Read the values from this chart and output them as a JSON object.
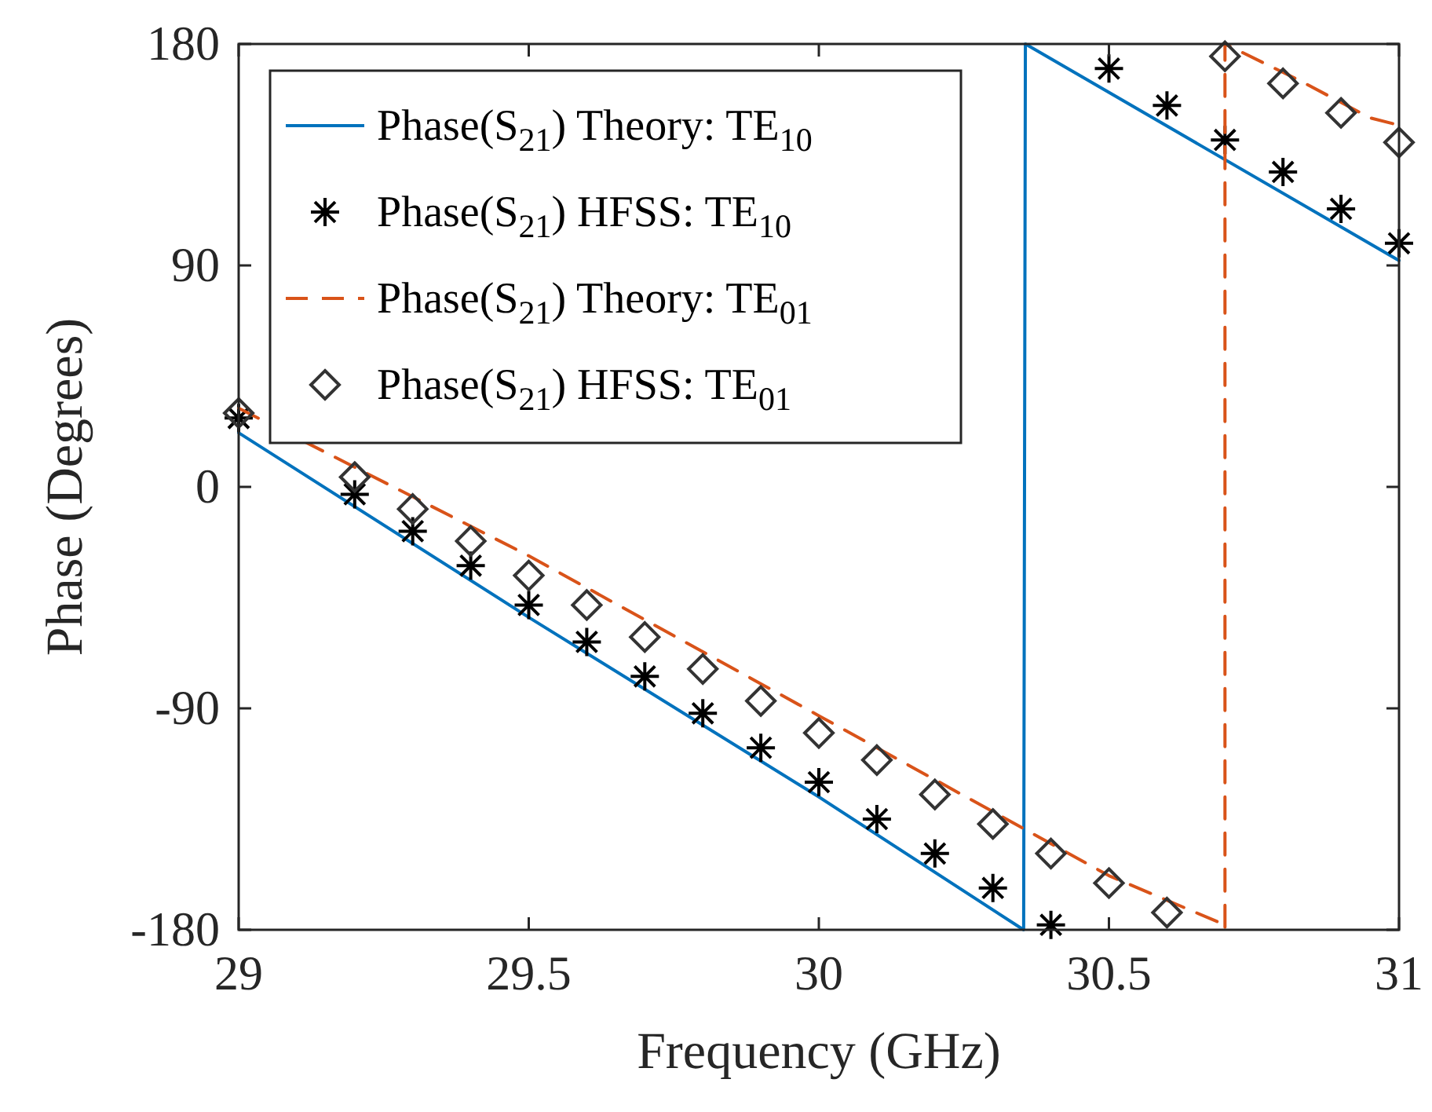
{
  "chart_data": {
    "type": "line",
    "xlabel": "Frequency (GHz)",
    "ylabel": "Phase (Degrees)",
    "xlim": [
      29,
      31
    ],
    "ylim": [
      -180,
      180
    ],
    "xticks": [
      29,
      29.5,
      30,
      30.5,
      31
    ],
    "yticks": [
      -180,
      -90,
      0,
      90,
      180
    ],
    "legend": "top left",
    "series": [
      {
        "name": "Phase(S$_{21}$) Theory: TE$_{10}$",
        "color": "#0072bd",
        "line_style": "solid",
        "marker": "none",
        "x": [
          29,
          29.5,
          30,
          30.353,
          30.356,
          31
        ],
        "values": [
          22,
          -53,
          -126,
          -180,
          180,
          92
        ]
      },
      {
        "name": "Phase(S$_{21}$) HFSS: TE$_{10}$",
        "type": "scatter",
        "color": "#000000",
        "marker": "cross",
        "x": [
          29,
          29.2,
          29.3,
          29.4,
          29.5,
          29.6,
          29.7,
          29.8,
          29.9,
          30,
          30.1,
          30.2,
          30.3,
          30.4,
          30.5,
          30.6,
          30.7,
          30.8,
          30.9,
          31
        ],
        "values": [
          28,
          -3,
          -18,
          -32,
          -48,
          -63,
          -77,
          -92,
          -106,
          -120,
          -135,
          -149,
          -163,
          -178,
          170,
          155,
          141,
          128,
          113,
          99
        ]
      },
      {
        "name": "Phase(S$_{21}$) Theory: TE$_{01}$",
        "color": "#d95319",
        "line_style": "dashed",
        "marker": "none",
        "x": [
          29,
          29.5,
          30,
          30.5,
          30.65,
          30.69,
          30.7,
          30.7,
          30.83,
          30.95,
          31
        ],
        "values": [
          32,
          -28,
          -93,
          -158,
          -173,
          -177,
          -180,
          180,
          165,
          150,
          147
        ]
      },
      {
        "name": "Phase(S$_{21}$) HFSS: TE$_{01}$",
        "type": "scatter",
        "color": "#333333",
        "marker": "diamond",
        "x": [
          29,
          29.2,
          29.3,
          29.4,
          29.5,
          29.6,
          29.7,
          29.8,
          29.9,
          30,
          30.1,
          30.2,
          30.3,
          30.4,
          30.5,
          30.6,
          30.7,
          30.8,
          30.9,
          31
        ],
        "values": [
          30,
          4,
          -9,
          -22,
          -36,
          -48,
          -61,
          -74,
          -87,
          -100,
          -111,
          -125,
          -137,
          -149,
          -161,
          -173,
          175,
          164,
          152,
          140
        ]
      }
    ]
  }
}
